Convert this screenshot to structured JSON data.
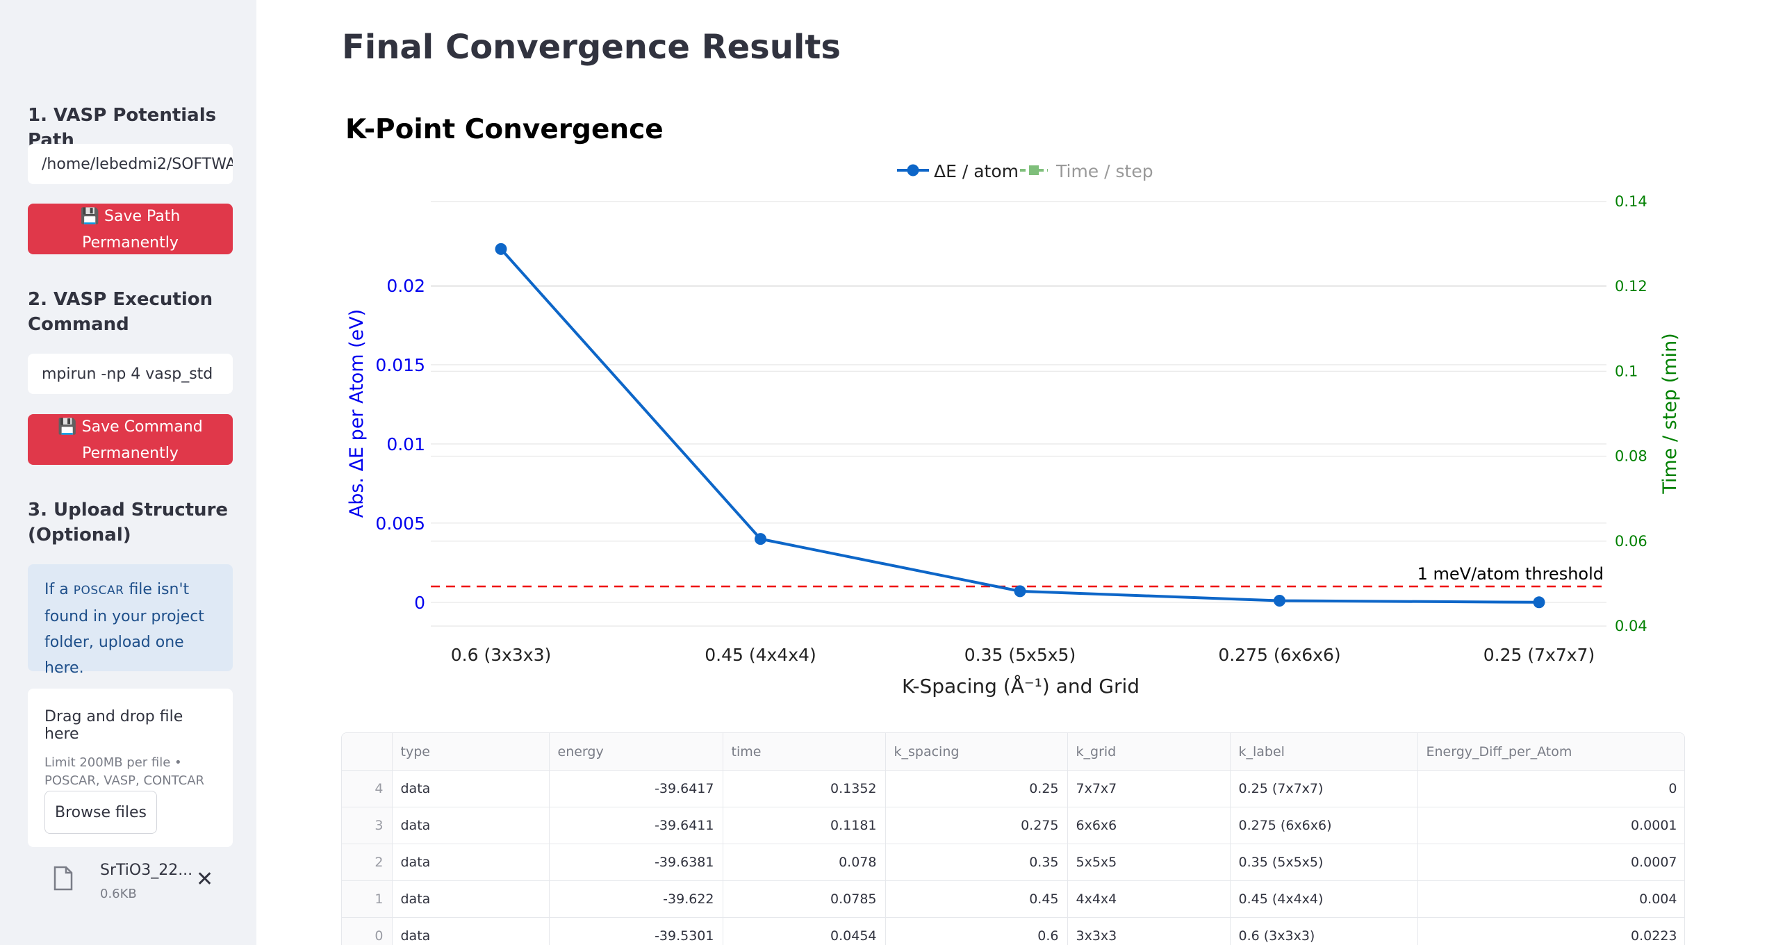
{
  "sidebar": {
    "potentials": {
      "heading": "1. VASP Potentials Path",
      "input_value": "/home/lebedmi2/SOFTWA",
      "button_label": "💾 Save Path Permanently"
    },
    "execution": {
      "heading": "2. VASP Execution Command",
      "input_value": "mpirun -np 4 vasp_std",
      "button_label": "💾 Save Command Permanently"
    },
    "upload": {
      "heading": "3. Upload Structure (Optional)",
      "info_prefix": "If a ",
      "info_code": "POSCAR",
      "info_suffix": " file isn't found in your project folder, upload one here.",
      "drop_label": "Drag and drop file here",
      "limit_text": "Limit 200MB per file • POSCAR, VASP, CONTCAR",
      "browse_label": "Browse files",
      "file_name": "SrTiO3_22...",
      "file_size": "0.6KB",
      "file_icon": "file-icon",
      "remove_icon": "close-icon"
    }
  },
  "main": {
    "title": "Final Convergence Results"
  },
  "colors": {
    "accent_button": "#e0384a",
    "energy_series": "#0d66c8",
    "time_series": "#7fbf7b",
    "left_axis": "#0000ee",
    "right_axis": "#008000",
    "threshold": "#ee0000"
  },
  "chart_data": {
    "type": "line",
    "title": "K-Point Convergence",
    "xlabel": "K-Spacing (Å⁻¹) and Grid",
    "ylabel": "Abs. ΔE per Atom (eV)",
    "y2label": "Time / step (min)",
    "categories": [
      "0.6 (3x3x3)",
      "0.45 (4x4x4)",
      "0.35 (5x5x5)",
      "0.275 (6x6x6)",
      "0.25 (7x7x7)"
    ],
    "series": [
      {
        "name": "ΔE / atom",
        "axis": "y",
        "values": [
          0.0223,
          0.004,
          0.0007,
          0.0001,
          0
        ],
        "visible": true
      },
      {
        "name": "Time / step",
        "axis": "y2",
        "values": [
          0.0454,
          0.0785,
          0.078,
          0.1181,
          0.1352
        ],
        "visible": false
      }
    ],
    "ylim": [
      -0.0015,
      0.0253
    ],
    "y_ticks": [
      "0",
      "0.005",
      "0.01",
      "0.015",
      "0.02"
    ],
    "y2lim": [
      0.04,
      0.14
    ],
    "y2_ticks": [
      "0.04",
      "0.06",
      "0.08",
      "0.1",
      "0.12",
      "0.14"
    ],
    "threshold": {
      "value": 0.001,
      "label": "1 meV/atom threshold"
    },
    "legend": "top-center",
    "grid": true
  },
  "table": {
    "columns": [
      "",
      "type",
      "energy",
      "time",
      "k_spacing",
      "k_grid",
      "k_label",
      "Energy_Diff_per_Atom"
    ],
    "rows": [
      [
        "4",
        "data",
        "-39.6417",
        "0.1352",
        "0.25",
        "7x7x7",
        "0.25 (7x7x7)",
        "0"
      ],
      [
        "3",
        "data",
        "-39.6411",
        "0.1181",
        "0.275",
        "6x6x6",
        "0.275 (6x6x6)",
        "0.0001"
      ],
      [
        "2",
        "data",
        "-39.6381",
        "0.078",
        "0.35",
        "5x5x5",
        "0.35 (5x5x5)",
        "0.0007"
      ],
      [
        "1",
        "data",
        "-39.622",
        "0.0785",
        "0.45",
        "4x4x4",
        "0.45 (4x4x4)",
        "0.004"
      ],
      [
        "0",
        "data",
        "-39.5301",
        "0.0454",
        "0.6",
        "3x3x3",
        "0.6 (3x3x3)",
        "0.0223"
      ]
    ]
  }
}
